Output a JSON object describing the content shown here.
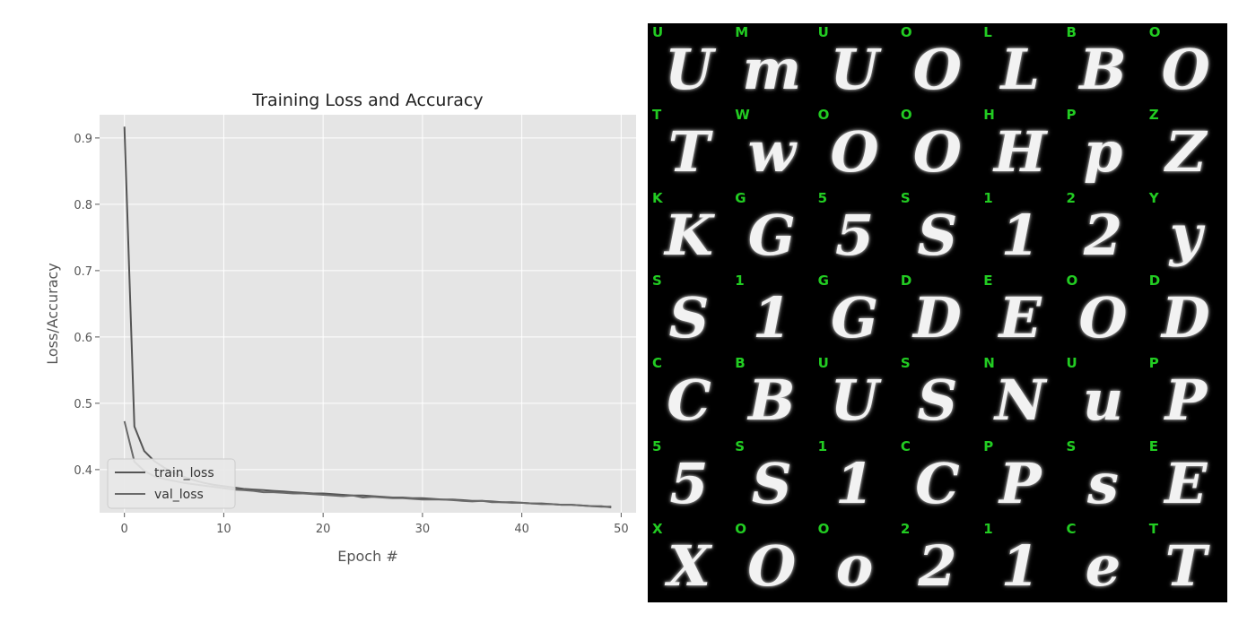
{
  "chart_data": {
    "type": "line",
    "title": "Training Loss and Accuracy",
    "xlabel": "Epoch #",
    "ylabel": "Loss/Accuracy",
    "xlim": [
      -2.5,
      51.5
    ],
    "ylim": [
      0.335,
      0.935
    ],
    "xticks": [
      "0",
      "10",
      "20",
      "30",
      "40",
      "50"
    ],
    "yticks": [
      "0.4",
      "0.5",
      "0.6",
      "0.7",
      "0.8",
      "0.9"
    ],
    "grid": true,
    "legend_position": "lower-left",
    "series": [
      {
        "name": "train_loss",
        "color": "#555555",
        "x": [
          0,
          1,
          2,
          3,
          4,
          5,
          6,
          7,
          8,
          9,
          10,
          11,
          12,
          13,
          14,
          15,
          16,
          17,
          18,
          19,
          20,
          21,
          22,
          23,
          24,
          25,
          26,
          27,
          28,
          29,
          30,
          31,
          32,
          33,
          34,
          35,
          36,
          37,
          38,
          39,
          40,
          41,
          42,
          43,
          44,
          45,
          46,
          47,
          48,
          49
        ],
        "values": [
          0.917,
          0.465,
          0.428,
          0.413,
          0.403,
          0.395,
          0.389,
          0.384,
          0.38,
          0.377,
          0.375,
          0.373,
          0.371,
          0.37,
          0.369,
          0.368,
          0.367,
          0.366,
          0.365,
          0.364,
          0.364,
          0.363,
          0.362,
          0.361,
          0.361,
          0.36,
          0.359,
          0.358,
          0.358,
          0.357,
          0.357,
          0.356,
          0.355,
          0.355,
          0.354,
          0.353,
          0.353,
          0.352,
          0.351,
          0.351,
          0.35,
          0.349,
          0.349,
          0.348,
          0.347,
          0.347,
          0.346,
          0.345,
          0.344,
          0.344
        ]
      },
      {
        "name": "val_loss",
        "color": "#6a6a6a",
        "x": [
          0,
          1,
          2,
          3,
          4,
          5,
          6,
          7,
          8,
          9,
          10,
          11,
          12,
          13,
          14,
          15,
          16,
          17,
          18,
          19,
          20,
          21,
          22,
          23,
          24,
          25,
          26,
          27,
          28,
          29,
          30,
          31,
          32,
          33,
          34,
          35,
          36,
          37,
          38,
          39,
          40,
          41,
          42,
          43,
          44,
          45,
          46,
          47,
          48,
          49
        ],
        "values": [
          0.473,
          0.412,
          0.398,
          0.39,
          0.386,
          0.383,
          0.38,
          0.378,
          0.376,
          0.374,
          0.372,
          0.37,
          0.369,
          0.368,
          0.366,
          0.366,
          0.365,
          0.364,
          0.364,
          0.363,
          0.362,
          0.361,
          0.36,
          0.361,
          0.358,
          0.359,
          0.358,
          0.357,
          0.357,
          0.356,
          0.355,
          0.355,
          0.355,
          0.354,
          0.353,
          0.352,
          0.353,
          0.351,
          0.351,
          0.35,
          0.35,
          0.349,
          0.348,
          0.348,
          0.347,
          0.347,
          0.346,
          0.345,
          0.345,
          0.343
        ]
      }
    ]
  },
  "sample_grid": {
    "label_color": "#22cc22",
    "rows": [
      [
        {
          "label": "U",
          "glyph": "U"
        },
        {
          "label": "M",
          "glyph": "m"
        },
        {
          "label": "U",
          "glyph": "U"
        },
        {
          "label": "O",
          "glyph": "O"
        },
        {
          "label": "L",
          "glyph": "L"
        },
        {
          "label": "B",
          "glyph": "B"
        },
        {
          "label": "O",
          "glyph": "O"
        }
      ],
      [
        {
          "label": "T",
          "glyph": "T"
        },
        {
          "label": "W",
          "glyph": "w"
        },
        {
          "label": "O",
          "glyph": "O"
        },
        {
          "label": "O",
          "glyph": "O"
        },
        {
          "label": "H",
          "glyph": "H"
        },
        {
          "label": "P",
          "glyph": "p"
        },
        {
          "label": "Z",
          "glyph": "Z"
        }
      ],
      [
        {
          "label": "K",
          "glyph": "K"
        },
        {
          "label": "G",
          "glyph": "G"
        },
        {
          "label": "5",
          "glyph": "5"
        },
        {
          "label": "S",
          "glyph": "S"
        },
        {
          "label": "1",
          "glyph": "1"
        },
        {
          "label": "2",
          "glyph": "2"
        },
        {
          "label": "Y",
          "glyph": "y"
        }
      ],
      [
        {
          "label": "S",
          "glyph": "S"
        },
        {
          "label": "1",
          "glyph": "1"
        },
        {
          "label": "G",
          "glyph": "G"
        },
        {
          "label": "D",
          "glyph": "D"
        },
        {
          "label": "E",
          "glyph": "E"
        },
        {
          "label": "O",
          "glyph": "O"
        },
        {
          "label": "D",
          "glyph": "D"
        }
      ],
      [
        {
          "label": "C",
          "glyph": "C"
        },
        {
          "label": "B",
          "glyph": "B"
        },
        {
          "label": "U",
          "glyph": "U"
        },
        {
          "label": "S",
          "glyph": "S"
        },
        {
          "label": "N",
          "glyph": "N"
        },
        {
          "label": "U",
          "glyph": "u"
        },
        {
          "label": "P",
          "glyph": "P"
        }
      ],
      [
        {
          "label": "5",
          "glyph": "5"
        },
        {
          "label": "S",
          "glyph": "S"
        },
        {
          "label": "1",
          "glyph": "1"
        },
        {
          "label": "C",
          "glyph": "C"
        },
        {
          "label": "P",
          "glyph": "P"
        },
        {
          "label": "S",
          "glyph": "s"
        },
        {
          "label": "E",
          "glyph": "E"
        }
      ],
      [
        {
          "label": "X",
          "glyph": "X"
        },
        {
          "label": "O",
          "glyph": "O"
        },
        {
          "label": "O",
          "glyph": "o"
        },
        {
          "label": "2",
          "glyph": "2"
        },
        {
          "label": "1",
          "glyph": "1"
        },
        {
          "label": "C",
          "glyph": "e"
        },
        {
          "label": "T",
          "glyph": "T"
        }
      ]
    ]
  }
}
